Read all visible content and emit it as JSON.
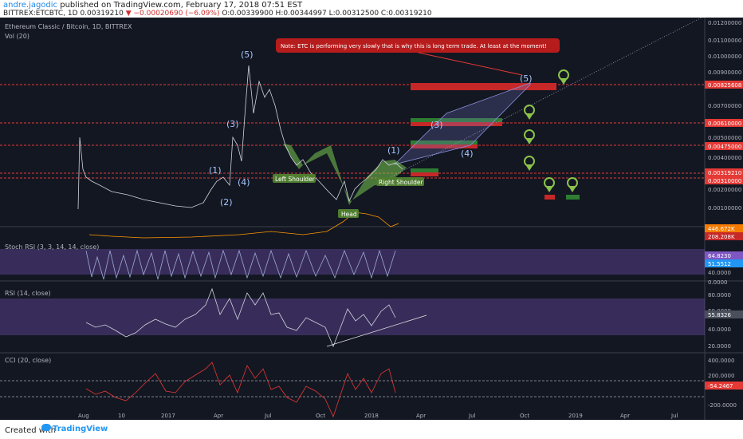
{
  "header": {
    "author": "andre.jagodic",
    "published": "published on TradingView.com, February 17, 2018 07:51 EST",
    "symbol_line_prefix": "BITTREX:ETCBTC, 1D",
    "last": "0.00319210",
    "change": "−0.00020690 (−6.09%)",
    "ohlc": "O:0.00339900 H:0.00344997 L:0.00312500 C:0.00319210"
  },
  "main": {
    "title": "Ethereum Classic / Bitcoin, 1D, BITTREX",
    "vol_label": "Vol (20)",
    "note": "Note: ETC is performing very slowly that is why this is long term trade. At least at the moment!",
    "price_axis": [
      "0.01200000",
      "0.01100000",
      "0.01000000",
      "0.00900000",
      "0.00825608",
      "0.00700000",
      "0.00610000",
      "0.00500000",
      "0.00475000",
      "0.00400000",
      "0.00319210",
      "0.00310000",
      "0.00200000",
      "0.00100000",
      "446.672K",
      "208.208K"
    ],
    "wave_labels": [
      "(1)",
      "(2)",
      "(3)",
      "(4)",
      "(5)",
      "(1)",
      "(3)",
      "(4)",
      "(5)"
    ],
    "pattern_labels": {
      "left": "Left Shoulder",
      "head": "Head",
      "right": "Right Shoulder"
    }
  },
  "stoch": {
    "label": "Stoch RSI (3, 3, 14, 14, close)",
    "axis": [
      "64.8230",
      "51.5512",
      "40.0000",
      "0.0000"
    ]
  },
  "rsi": {
    "label": "RSI (14, close)",
    "axis": [
      "80.0000",
      "60.0000",
      "55.8326",
      "40.0000",
      "20.0000"
    ]
  },
  "cci": {
    "label": "CCI (20, close)",
    "axis": [
      "400.0000",
      "200.0000",
      "-54.2467",
      "-200.0000"
    ]
  },
  "time_axis": [
    "Aug",
    "10",
    "2017",
    "Apr",
    "Jul",
    "Oct",
    "2018",
    "Apr",
    "Jul",
    "Oct",
    "2019",
    "Apr",
    "Jul"
  ],
  "footer": {
    "created": "Created with",
    "brand": "TradingView"
  },
  "colors": {
    "bg": "#131722",
    "red_level": "#e53935",
    "green": "#43a047",
    "purple": "#5e35b1",
    "accent": "#2196f3"
  }
}
